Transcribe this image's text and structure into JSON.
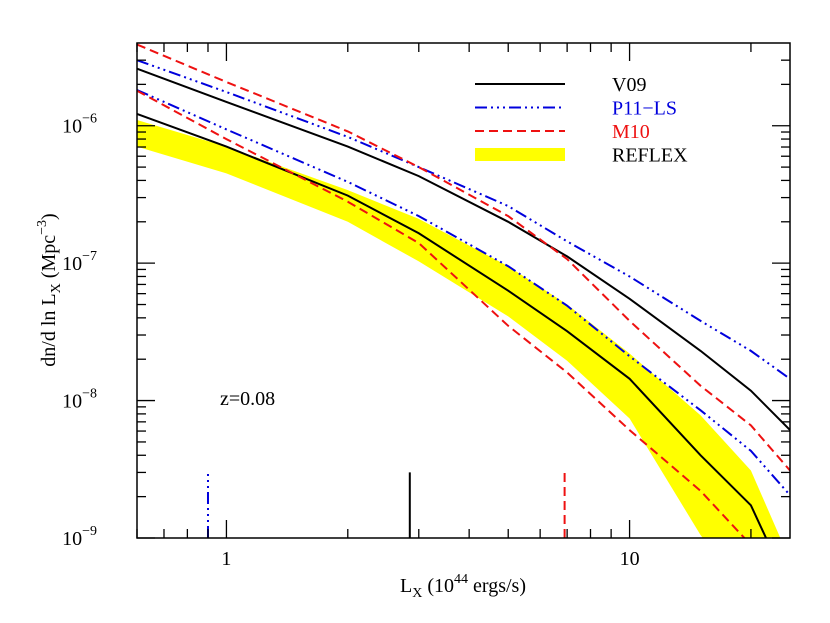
{
  "chart_data": {
    "type": "line",
    "xlabel": [
      "L",
      "X",
      " (10",
      "44",
      " ergs/s)"
    ],
    "ylabel": [
      "dn/d ln L",
      "X",
      " (Mpc",
      "−3",
      ")"
    ],
    "annotation": "z=0.08",
    "xlog": true,
    "ylog": true,
    "xlim": [
      0.6,
      25
    ],
    "ylim": [
      1e-09,
      4e-06
    ],
    "xticks": [
      1,
      10
    ],
    "xminor": [
      0.6,
      0.7,
      0.8,
      0.9,
      2,
      3,
      4,
      5,
      6,
      7,
      8,
      9,
      20
    ],
    "yticks": [
      {
        "value": 1e-09,
        "label": "10",
        "exp": "−9"
      },
      {
        "value": 1e-08,
        "label": "10",
        "exp": "−8"
      },
      {
        "value": 1e-07,
        "label": "10",
        "exp": "−7"
      },
      {
        "value": 1e-06,
        "label": "10",
        "exp": "−6"
      }
    ],
    "yminor": [
      2e-09,
      3e-09,
      4e-09,
      5e-09,
      6e-09,
      7e-09,
      8e-09,
      9e-09,
      2e-08,
      3e-08,
      4e-08,
      5e-08,
      6e-08,
      7e-08,
      8e-08,
      9e-08,
      2e-07,
      3e-07,
      4e-07,
      5e-07,
      6e-07,
      7e-07,
      8e-07,
      9e-07,
      2e-06,
      3e-06
    ],
    "legend": "upper right",
    "x": [
      0.6,
      1,
      2,
      3,
      5,
      7,
      10,
      15,
      20,
      25
    ],
    "marker_ylim": [
      1e-09,
      3e-09
    ],
    "series": [
      {
        "name": "V09",
        "color": "#000000",
        "label_color": "#000000",
        "dash": "none",
        "marker_x": 2.85,
        "upper": [
          2.6e-06,
          1.49e-06,
          7.05e-07,
          4.3e-07,
          2e-07,
          1.12e-07,
          5.5e-08,
          2.3e-08,
          1.18e-08,
          6.1e-09
        ],
        "lower": [
          1.22e-06,
          7.05e-07,
          3.1e-07,
          1.65e-07,
          6.3e-08,
          3.2e-08,
          1.44e-08,
          4e-09,
          1.73e-09,
          4.2e-10
        ]
      },
      {
        "name": "P11−LS",
        "color": "#0000dd",
        "label_color": "#0000dd",
        "dash": "12 4 2 4 2 4 2 4",
        "marker_x": 0.9,
        "upper": [
          3e-06,
          1.76e-06,
          8.3e-07,
          5e-07,
          2.6e-07,
          1.44e-07,
          8e-08,
          3.8e-08,
          2.3e-08,
          1.44e-08
        ],
        "lower": [
          1.82e-06,
          9.4e-07,
          3.9e-07,
          2.2e-07,
          9.5e-08,
          4.9e-08,
          2.1e-08,
          8.5e-09,
          4.3e-09,
          2.05e-09
        ]
      },
      {
        "name": "M10",
        "color": "#ee1111",
        "label_color": "#ee1111",
        "dash": "9 5",
        "marker_x": 6.9,
        "upper": [
          3.9e-06,
          2.08e-06,
          9.1e-07,
          5e-07,
          2.2e-07,
          1.07e-07,
          3.8e-08,
          1.28e-08,
          6.6e-09,
          3.1e-09
        ],
        "lower": [
          1.8e-06,
          8e-07,
          2.8e-07,
          1.4e-07,
          3.5e-08,
          1.6e-08,
          6.1e-09,
          2.2e-09,
          8.9e-10,
          3.6e-10
        ]
      },
      {
        "name": "REFLEX",
        "color": "#ffff00",
        "label_color": "#000000",
        "band": true,
        "upper": [
          1.1e-06,
          7.05e-07,
          3.4e-07,
          2.1e-07,
          9.5e-08,
          5e-08,
          2.2e-08,
          7.8e-09,
          3.1e-09,
          6.9e-10
        ],
        "lower": [
          7.05e-07,
          4.5e-07,
          2e-07,
          1.03e-07,
          4.1e-08,
          1.95e-08,
          7.4e-09,
          1.05e-09,
          3.6e-10,
          1.5e-10
        ]
      }
    ]
  }
}
